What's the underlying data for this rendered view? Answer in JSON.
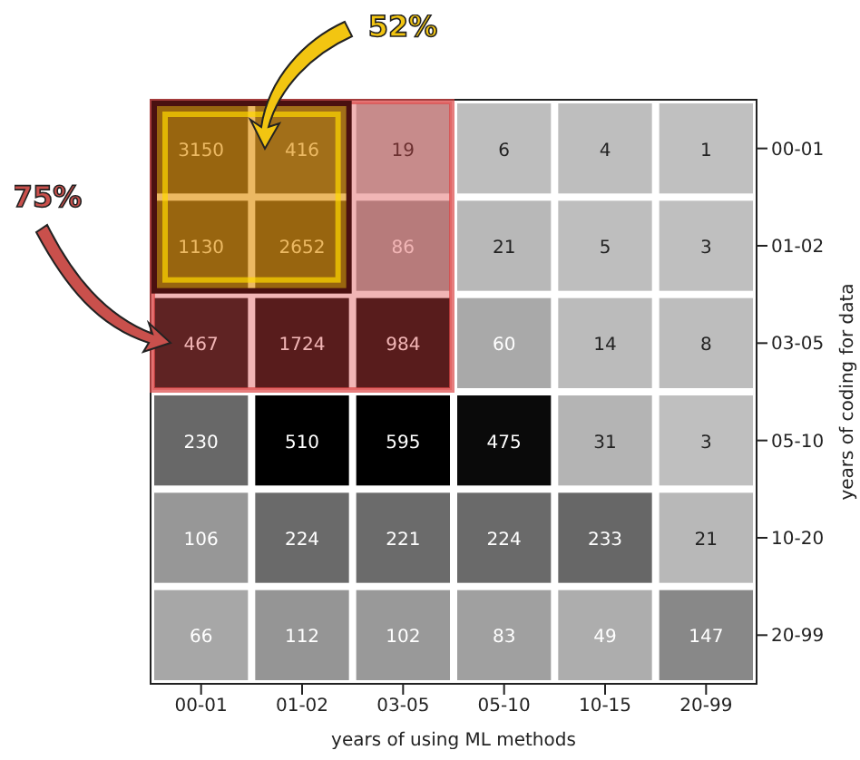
{
  "chart_data": {
    "type": "heatmap",
    "xlabel": "years of using ML methods",
    "ylabel": "years of coding for data",
    "categories": [
      "00-01",
      "01-02",
      "03-05",
      "05-10",
      "10-15",
      "20-99"
    ],
    "y_categories": [
      "00-01",
      "01-02",
      "03-05",
      "05-10",
      "10-20",
      "20-99"
    ],
    "cells": [
      [
        3150,
        416,
        19,
        6,
        4,
        1
      ],
      [
        1130,
        2652,
        86,
        21,
        5,
        3
      ],
      [
        467,
        1724,
        984,
        60,
        14,
        8
      ],
      [
        230,
        510,
        595,
        475,
        31,
        3
      ],
      [
        106,
        224,
        221,
        224,
        233,
        21
      ],
      [
        66,
        112,
        102,
        83,
        49,
        147
      ]
    ],
    "data_labels": true,
    "annotations": [
      "52%",
      "75%"
    ]
  }
}
